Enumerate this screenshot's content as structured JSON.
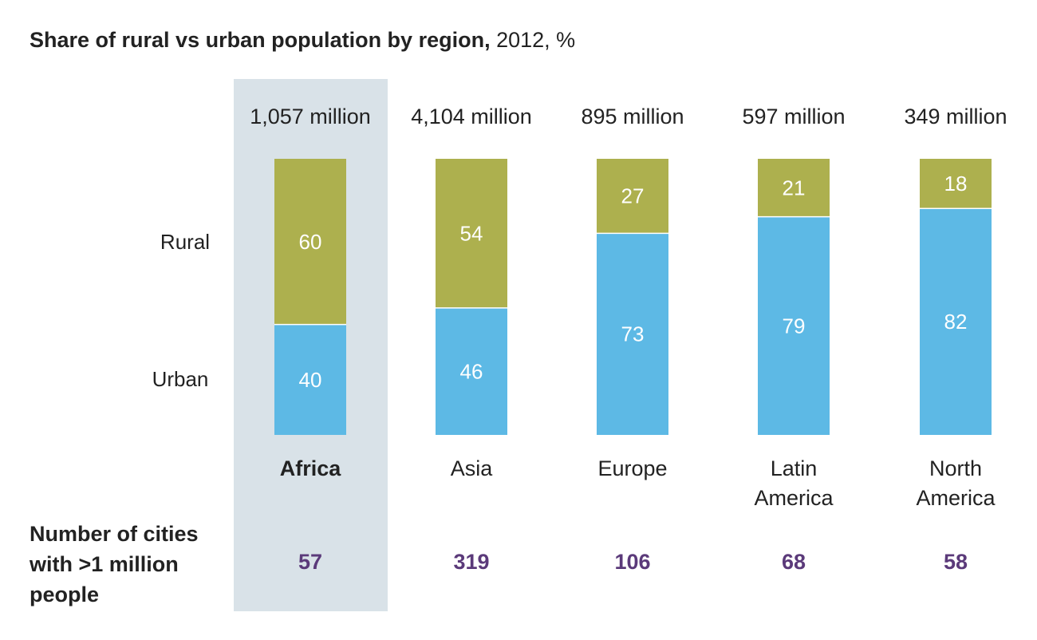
{
  "title": {
    "main": "Share of rural vs urban population by region,",
    "suffix": " 2012, %"
  },
  "footer_label": "Number of cities with >1 million people",
  "colors": {
    "rural": "#adb04e",
    "urban": "#5db9e5",
    "highlight": "#d9e2e8",
    "cities_text": "#5b3a7a",
    "label_white": "#ffffff"
  },
  "chart_data": {
    "type": "bar",
    "stacked": true,
    "title": "Share of rural vs urban population by region, 2012, %",
    "categories": [
      "Africa",
      "Asia",
      "Europe",
      "Latin America",
      "North America"
    ],
    "category_lines": [
      [
        "Africa"
      ],
      [
        "Asia"
      ],
      [
        "Europe"
      ],
      [
        "Latin",
        "America"
      ],
      [
        "North",
        "America"
      ]
    ],
    "highlighted_category": "Africa",
    "series": [
      {
        "name": "Urban",
        "values": [
          40,
          46,
          73,
          79,
          82
        ]
      },
      {
        "name": "Rural",
        "values": [
          60,
          54,
          27,
          21,
          18
        ]
      }
    ],
    "series_labels_on_left": [
      "Rural",
      "Urban"
    ],
    "ylim": [
      0,
      100
    ],
    "population_labels": [
      "1,057 million",
      "4,104 million",
      "895 million",
      "597 million",
      "349 million"
    ],
    "cities_over_1_million": [
      57,
      319,
      106,
      68,
      58
    ],
    "grid": false,
    "legend": "left"
  }
}
